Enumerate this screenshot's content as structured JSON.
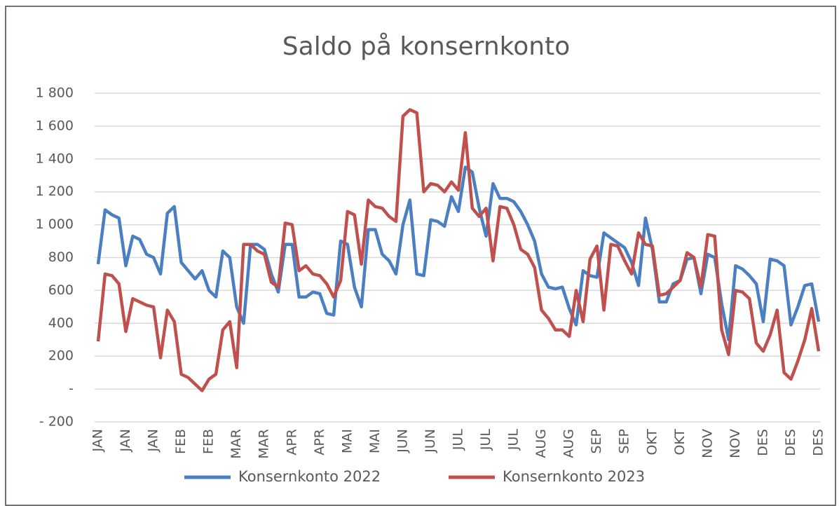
{
  "chart_data": {
    "type": "line",
    "title": "Saldo på konsernkonto",
    "categories": [
      "JAN",
      null,
      null,
      null,
      "JAN",
      null,
      null,
      null,
      "JAN",
      null,
      null,
      null,
      "FEB",
      null,
      null,
      null,
      "FEB",
      null,
      null,
      null,
      "MAR",
      null,
      null,
      null,
      "MAR",
      null,
      null,
      null,
      "APR",
      null,
      null,
      null,
      "APR",
      null,
      null,
      null,
      "MAI",
      null,
      null,
      null,
      "MAI",
      null,
      null,
      null,
      "JUN",
      null,
      null,
      null,
      "JUN",
      null,
      null,
      null,
      "JUL",
      null,
      null,
      null,
      "JUL",
      null,
      null,
      null,
      "JUL",
      null,
      null,
      null,
      "AUG",
      null,
      null,
      null,
      "AUG",
      null,
      null,
      null,
      "SEP",
      null,
      null,
      null,
      "SEP",
      null,
      null,
      null,
      "OKT",
      null,
      null,
      null,
      "OKT",
      null,
      null,
      null,
      "NOV",
      null,
      null,
      null,
      "NOV",
      null,
      null,
      null,
      "DES",
      null,
      null,
      null,
      "DES",
      null,
      null,
      null,
      "DES"
    ],
    "series": [
      {
        "name": "Konsernkonto 2022",
        "color": "#4a7fc1",
        "values": [
          760,
          1090,
          1060,
          1040,
          750,
          930,
          910,
          820,
          800,
          700,
          1070,
          1110,
          770,
          720,
          670,
          720,
          600,
          560,
          840,
          800,
          500,
          400,
          880,
          880,
          850,
          700,
          590,
          880,
          880,
          560,
          560,
          590,
          580,
          460,
          450,
          900,
          880,
          620,
          500,
          970,
          970,
          820,
          780,
          700,
          1000,
          1150,
          700,
          690,
          1030,
          1020,
          990,
          1170,
          1080,
          1350,
          1320,
          1100,
          930,
          1250,
          1160,
          1160,
          1140,
          1080,
          1000,
          900,
          700,
          620,
          610,
          620,
          490,
          390,
          720,
          690,
          680,
          950,
          920,
          890,
          860,
          770,
          630,
          1040,
          850,
          530,
          530,
          640,
          660,
          790,
          800,
          580,
          820,
          800,
          520,
          300,
          750,
          730,
          690,
          640,
          410,
          790,
          780,
          750,
          390,
          500,
          630,
          640,
          410
        ]
      },
      {
        "name": "Konsernkonto 2023",
        "color": "#c0504d",
        "values": [
          290,
          700,
          690,
          640,
          350,
          550,
          530,
          510,
          500,
          190,
          480,
          410,
          90,
          70,
          30,
          -10,
          60,
          90,
          360,
          410,
          130,
          880,
          880,
          840,
          820,
          650,
          620,
          1010,
          1000,
          720,
          750,
          700,
          690,
          640,
          560,
          660,
          1080,
          1060,
          760,
          1150,
          1110,
          1100,
          1050,
          1020,
          1660,
          1700,
          1680,
          1200,
          1250,
          1240,
          1200,
          1260,
          1210,
          1560,
          1100,
          1050,
          1100,
          780,
          1110,
          1100,
          1000,
          850,
          820,
          740,
          480,
          430,
          360,
          360,
          320,
          600,
          410,
          790,
          870,
          480,
          880,
          870,
          780,
          700,
          950,
          880,
          870,
          570,
          580,
          620,
          660,
          830,
          800,
          620,
          940,
          930,
          360,
          210,
          600,
          590,
          550,
          280,
          230,
          330,
          480,
          100,
          60,
          170,
          300,
          490,
          230
        ]
      }
    ],
    "ylim": [
      -200,
      1800
    ],
    "yticks": [
      {
        "value": -200,
        "label": "- 200"
      },
      200,
      400,
      600,
      800,
      {
        "value": 1000,
        "label": "1 000"
      },
      {
        "value": 1200,
        "label": "1 200"
      },
      {
        "value": 1400,
        "label": "1 400"
      },
      {
        "value": 1600,
        "label": "1 600"
      },
      {
        "value": 1800,
        "label": "1 800"
      }
    ],
    "zero_tick": {
      "value": 0,
      "label": "-"
    },
    "grid": true,
    "legend": "bottom"
  }
}
